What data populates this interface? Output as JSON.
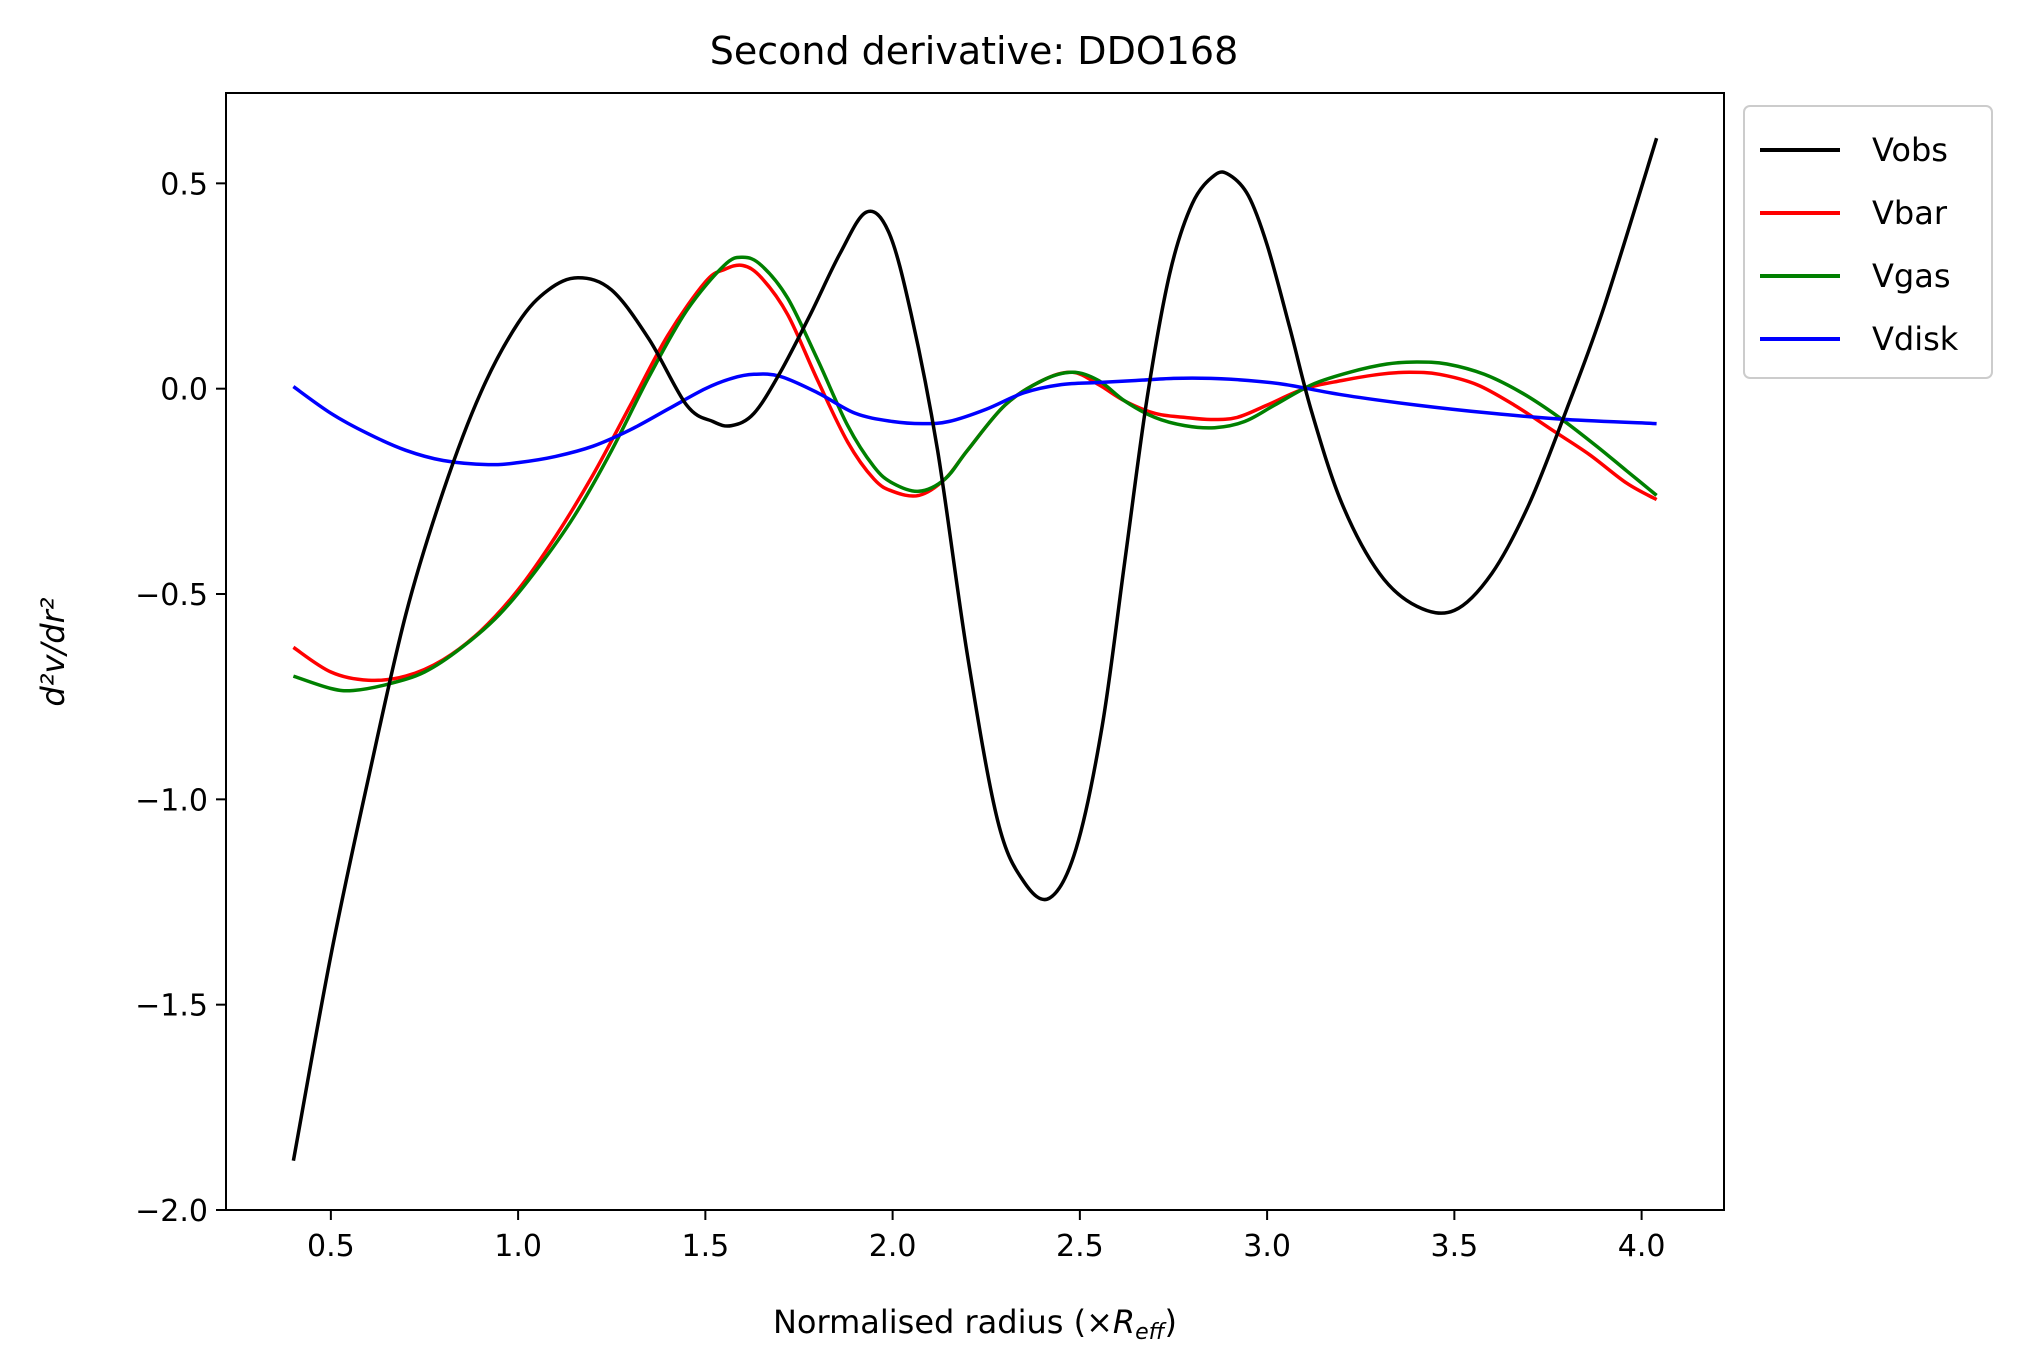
{
  "chart_data": {
    "type": "line",
    "title": "Second derivative: DDO168",
    "xlabel": {
      "prefix": "Normalised radius (×",
      "symbol": "R",
      "subscript": "eff",
      "suffix": ")"
    },
    "ylabel": {
      "text": "d²v/dr²"
    },
    "xlim": [
      0.22,
      4.22
    ],
    "ylim": [
      -2.0,
      0.72
    ],
    "xticks": [
      0.5,
      1.0,
      1.5,
      2.0,
      2.5,
      3.0,
      3.5,
      4.0
    ],
    "xtick_labels": [
      "0.5",
      "1.0",
      "1.5",
      "2.0",
      "2.5",
      "3.0",
      "3.5",
      "4.0"
    ],
    "yticks": [
      -2.0,
      -1.5,
      -1.0,
      -0.5,
      0.0,
      0.5
    ],
    "ytick_labels": [
      "−2.0",
      "−1.5",
      "−1.0",
      "−0.5",
      "0.0",
      "0.5"
    ],
    "grid": false,
    "legend_position": "outside-top-right",
    "series": [
      {
        "name": "Vobs",
        "color": "#000000",
        "x": [
          0.4,
          0.5,
          0.6,
          0.7,
          0.8,
          0.9,
          1.0,
          1.08,
          1.16,
          1.25,
          1.35,
          1.45,
          1.52,
          1.57,
          1.63,
          1.7,
          1.78,
          1.86,
          1.93,
          1.99,
          2.05,
          2.12,
          2.2,
          2.28,
          2.35,
          2.42,
          2.49,
          2.56,
          2.62,
          2.68,
          2.74,
          2.8,
          2.86,
          2.9,
          2.95,
          3.0,
          3.06,
          3.12,
          3.2,
          3.3,
          3.4,
          3.5,
          3.6,
          3.7,
          3.8,
          3.9,
          4.04
        ],
        "y": [
          -1.88,
          -1.38,
          -0.95,
          -0.55,
          -0.25,
          -0.01,
          0.16,
          0.24,
          0.27,
          0.24,
          0.12,
          -0.04,
          -0.08,
          -0.09,
          -0.06,
          0.04,
          0.18,
          0.33,
          0.43,
          0.38,
          0.18,
          -0.15,
          -0.65,
          -1.05,
          -1.2,
          -1.24,
          -1.12,
          -0.82,
          -0.42,
          -0.02,
          0.28,
          0.45,
          0.52,
          0.52,
          0.47,
          0.35,
          0.15,
          -0.06,
          -0.28,
          -0.45,
          -0.53,
          -0.54,
          -0.45,
          -0.28,
          -0.05,
          0.2,
          0.61
        ]
      },
      {
        "name": "Vbar",
        "color": "#ff0000",
        "x": [
          0.4,
          0.5,
          0.6,
          0.7,
          0.8,
          0.9,
          1.0,
          1.1,
          1.2,
          1.3,
          1.4,
          1.5,
          1.55,
          1.6,
          1.65,
          1.72,
          1.8,
          1.88,
          1.95,
          2.0,
          2.07,
          2.14,
          2.2,
          2.3,
          2.4,
          2.48,
          2.55,
          2.62,
          2.7,
          2.78,
          2.85,
          2.92,
          3.0,
          3.1,
          3.2,
          3.3,
          3.38,
          3.46,
          3.56,
          3.66,
          3.76,
          3.86,
          3.96,
          4.04
        ],
        "y": [
          -0.63,
          -0.69,
          -0.71,
          -0.7,
          -0.66,
          -0.59,
          -0.49,
          -0.36,
          -0.21,
          -0.04,
          0.13,
          0.26,
          0.29,
          0.3,
          0.27,
          0.18,
          0.02,
          -0.13,
          -0.22,
          -0.25,
          -0.26,
          -0.22,
          -0.15,
          -0.04,
          0.02,
          0.04,
          0.01,
          -0.03,
          -0.06,
          -0.07,
          -0.075,
          -0.07,
          -0.04,
          0.0,
          0.02,
          0.035,
          0.04,
          0.035,
          0.01,
          -0.04,
          -0.1,
          -0.16,
          -0.23,
          -0.27
        ]
      },
      {
        "name": "Vgas",
        "color": "#008000",
        "x": [
          0.4,
          0.5,
          0.56,
          0.65,
          0.75,
          0.85,
          0.95,
          1.05,
          1.15,
          1.25,
          1.35,
          1.45,
          1.55,
          1.6,
          1.65,
          1.72,
          1.8,
          1.88,
          1.95,
          2.0,
          2.07,
          2.14,
          2.2,
          2.3,
          2.4,
          2.48,
          2.55,
          2.62,
          2.7,
          2.78,
          2.86,
          2.94,
          3.02,
          3.12,
          3.22,
          3.32,
          3.4,
          3.48,
          3.58,
          3.68,
          3.78,
          3.88,
          3.96,
          4.04
        ],
        "y": [
          -0.7,
          -0.73,
          -0.735,
          -0.72,
          -0.69,
          -0.63,
          -0.55,
          -0.44,
          -0.31,
          -0.15,
          0.03,
          0.19,
          0.3,
          0.32,
          0.3,
          0.22,
          0.07,
          -0.09,
          -0.19,
          -0.23,
          -0.25,
          -0.22,
          -0.15,
          -0.04,
          0.02,
          0.04,
          0.02,
          -0.03,
          -0.07,
          -0.09,
          -0.095,
          -0.08,
          -0.04,
          0.01,
          0.04,
          0.06,
          0.065,
          0.06,
          0.035,
          -0.01,
          -0.07,
          -0.14,
          -0.2,
          -0.26
        ]
      },
      {
        "name": "Vdisk",
        "color": "#0000ff",
        "x": [
          0.4,
          0.5,
          0.6,
          0.7,
          0.8,
          0.92,
          1.0,
          1.1,
          1.2,
          1.3,
          1.4,
          1.5,
          1.57,
          1.63,
          1.7,
          1.8,
          1.9,
          2.0,
          2.08,
          2.15,
          2.25,
          2.35,
          2.45,
          2.55,
          2.65,
          2.75,
          2.85,
          2.95,
          3.05,
          3.2,
          3.4,
          3.6,
          3.8,
          4.04
        ],
        "y": [
          0.005,
          -0.06,
          -0.11,
          -0.15,
          -0.175,
          -0.185,
          -0.18,
          -0.165,
          -0.14,
          -0.1,
          -0.05,
          0.0,
          0.025,
          0.035,
          0.03,
          -0.01,
          -0.06,
          -0.08,
          -0.085,
          -0.08,
          -0.05,
          -0.01,
          0.01,
          0.015,
          0.02,
          0.025,
          0.025,
          0.02,
          0.01,
          -0.015,
          -0.04,
          -0.06,
          -0.075,
          -0.085
        ]
      }
    ]
  }
}
